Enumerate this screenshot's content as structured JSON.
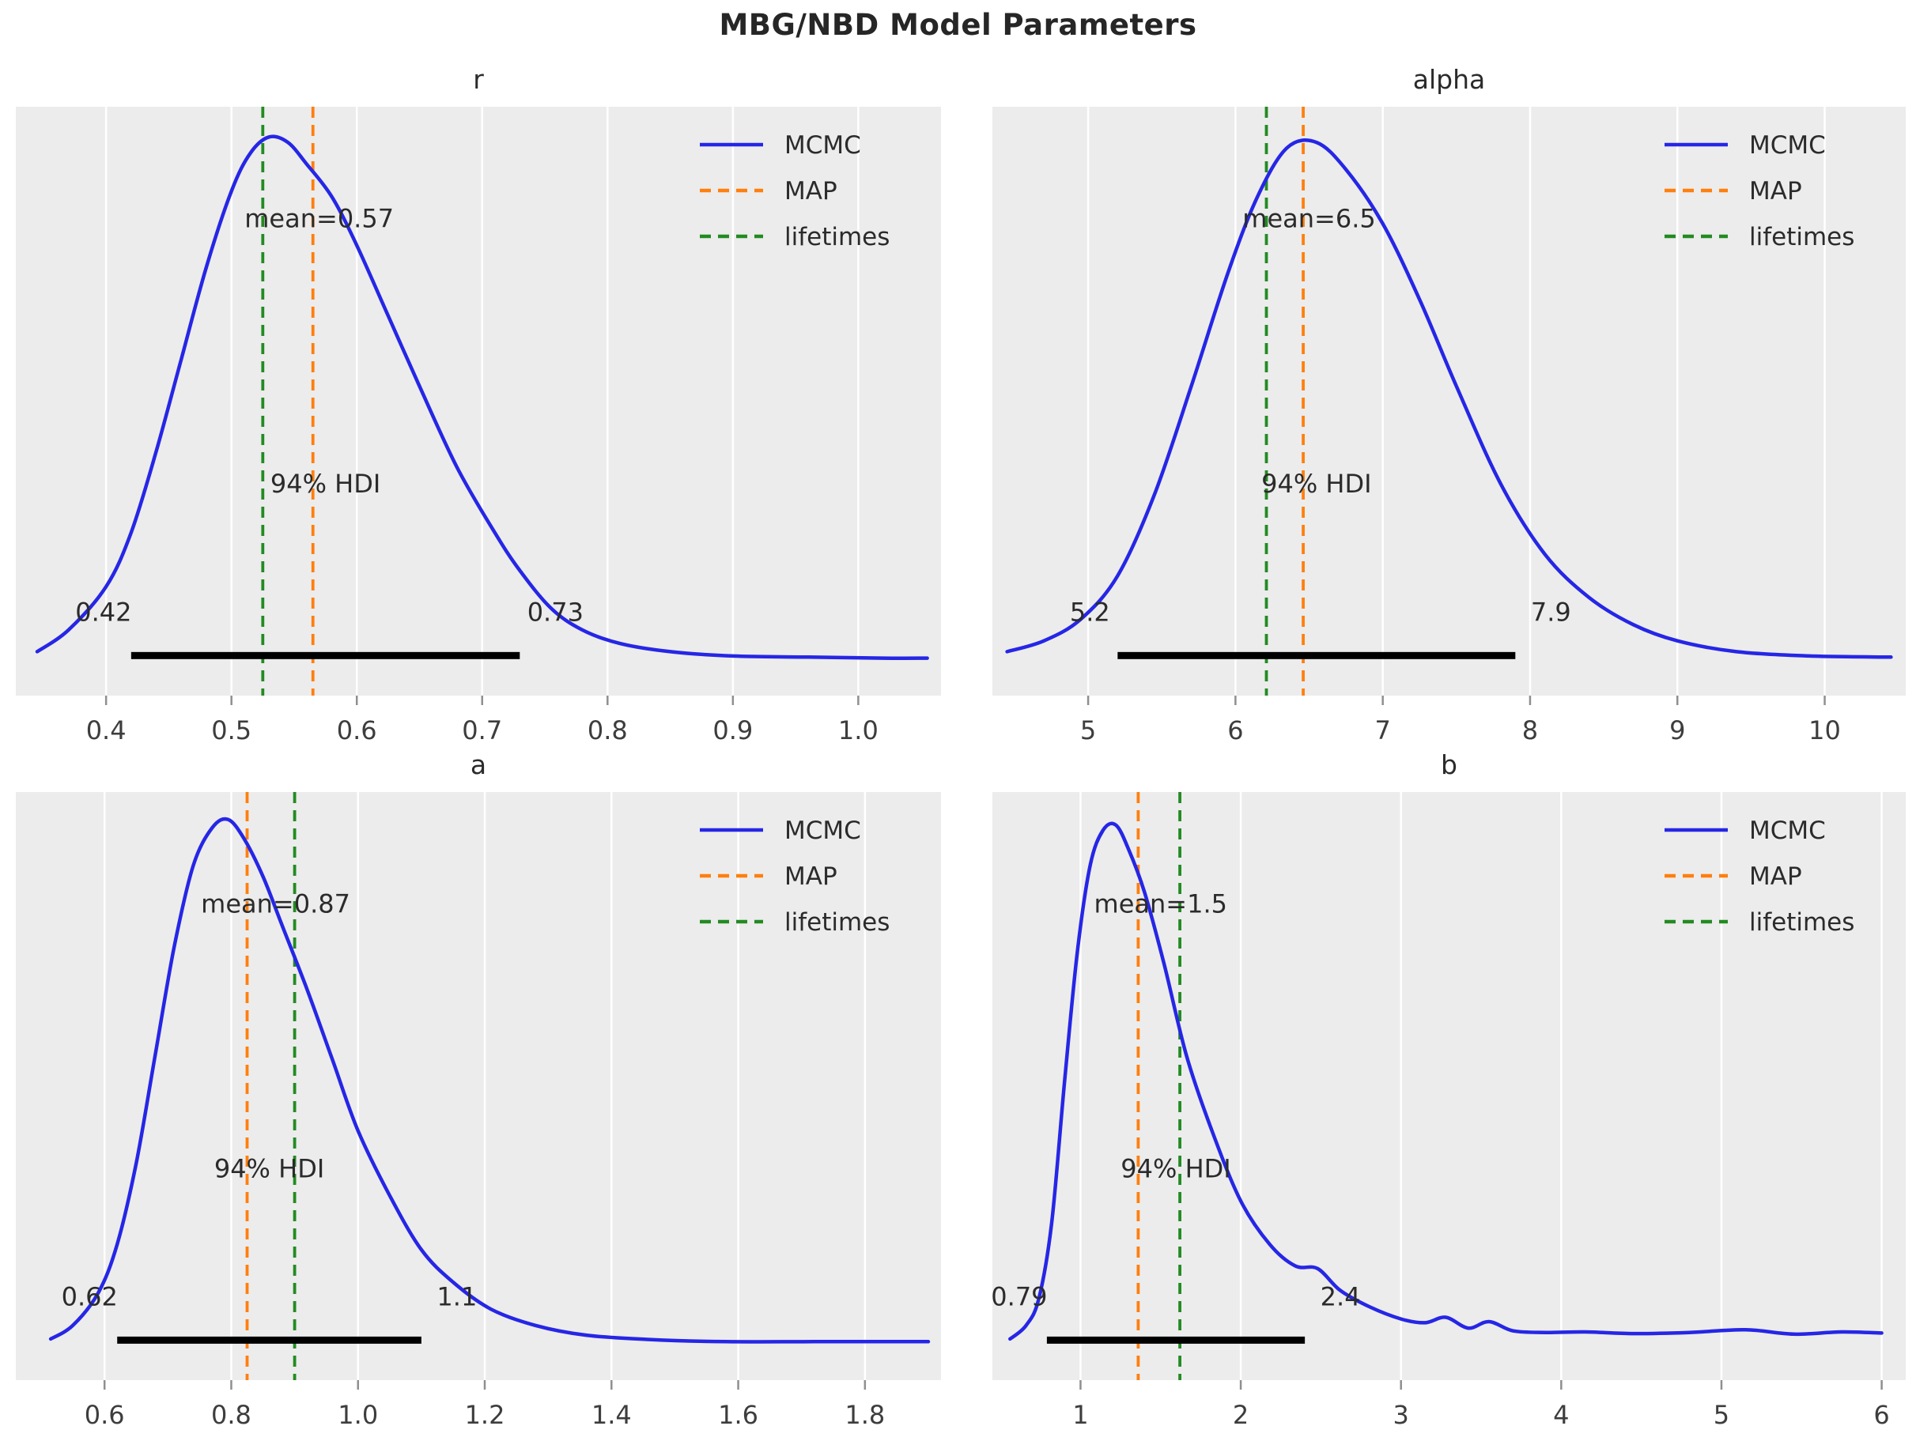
{
  "figure": {
    "title": "MBG/NBD Model Parameters",
    "background": "#ffffff",
    "axes_background": "#ececec",
    "gridline_color": "#ffffff",
    "tick_color": "#8f8f8f",
    "text_color": "#2b2b2b",
    "tick_label_color": "#3d3d3d"
  },
  "legend": {
    "position": "upper right",
    "items": [
      {
        "label": "MCMC",
        "color": "#2626e6",
        "dashed": false
      },
      {
        "label": "MAP",
        "color": "#ff7f0e",
        "dashed": true
      },
      {
        "label": "lifetimes",
        "color": "#228B22",
        "dashed": true
      }
    ]
  },
  "chart_data": [
    {
      "type": "line",
      "title": "r",
      "xlim": [
        0.328,
        1.066
      ],
      "xticks": [
        0.4,
        0.5,
        0.6,
        0.7,
        0.8,
        0.9,
        1.0
      ],
      "xtick_labels": [
        "0.4",
        "0.5",
        "0.6",
        "0.7",
        "0.8",
        "0.9",
        "1.0"
      ],
      "mean": 0.57,
      "mean_label": "mean=0.57",
      "map_value": 0.565,
      "lifetimes_value": 0.525,
      "hdi": [
        0.42,
        0.73
      ],
      "hdi_labels": [
        "0.42",
        "0.73"
      ],
      "hdi_text": "94% HDI",
      "series": [
        {
          "name": "MCMC",
          "x": [
            0.345,
            0.37,
            0.4,
            0.42,
            0.44,
            0.46,
            0.48,
            0.5,
            0.515,
            0.53,
            0.545,
            0.56,
            0.58,
            0.6,
            0.625,
            0.65,
            0.68,
            0.71,
            0.73,
            0.755,
            0.78,
            0.81,
            0.85,
            0.9,
            0.96,
            1.02,
            1.055
          ],
          "density": [
            0.03,
            0.07,
            0.15,
            0.25,
            0.4,
            0.57,
            0.74,
            0.88,
            0.95,
            0.98,
            0.97,
            0.93,
            0.87,
            0.78,
            0.65,
            0.52,
            0.37,
            0.25,
            0.18,
            0.11,
            0.07,
            0.045,
            0.03,
            0.022,
            0.02,
            0.018,
            0.018
          ]
        }
      ]
    },
    {
      "type": "line",
      "title": "alpha",
      "xlim": [
        4.35,
        10.55
      ],
      "xticks": [
        5,
        6,
        7,
        8,
        9,
        10
      ],
      "xtick_labels": [
        "5",
        "6",
        "7",
        "8",
        "9",
        "10"
      ],
      "mean": 6.5,
      "mean_label": "mean=6.5",
      "map_value": 6.46,
      "lifetimes_value": 6.21,
      "hdi": [
        5.2,
        7.9
      ],
      "hdi_labels": [
        "5.2",
        "7.9"
      ],
      "hdi_text": "94% HDI",
      "series": [
        {
          "name": "MCMC",
          "x": [
            4.45,
            4.7,
            4.95,
            5.2,
            5.45,
            5.7,
            5.95,
            6.15,
            6.35,
            6.55,
            6.75,
            7.0,
            7.25,
            7.5,
            7.8,
            8.1,
            8.4,
            8.7,
            9.0,
            9.4,
            9.9,
            10.45
          ],
          "density": [
            0.03,
            0.05,
            0.09,
            0.17,
            0.32,
            0.52,
            0.73,
            0.87,
            0.96,
            0.97,
            0.92,
            0.82,
            0.68,
            0.52,
            0.34,
            0.21,
            0.13,
            0.08,
            0.05,
            0.03,
            0.022,
            0.02
          ]
        }
      ]
    },
    {
      "type": "line",
      "title": "a",
      "xlim": [
        0.46,
        1.92
      ],
      "xticks": [
        0.6,
        0.8,
        1.0,
        1.2,
        1.4,
        1.6,
        1.8
      ],
      "xtick_labels": [
        "0.6",
        "0.8",
        "1.0",
        "1.2",
        "1.4",
        "1.6",
        "1.8"
      ],
      "mean": 0.87,
      "mean_label": "mean=0.87",
      "map_value": 0.825,
      "lifetimes_value": 0.9,
      "hdi": [
        0.62,
        1.1
      ],
      "hdi_labels": [
        "0.62",
        "1.1"
      ],
      "hdi_text": "94% HDI",
      "series": [
        {
          "name": "MCMC",
          "x": [
            0.515,
            0.55,
            0.59,
            0.62,
            0.65,
            0.68,
            0.71,
            0.74,
            0.77,
            0.795,
            0.82,
            0.85,
            0.88,
            0.92,
            0.96,
            1.0,
            1.05,
            1.1,
            1.15,
            1.21,
            1.28,
            1.36,
            1.46,
            1.58,
            1.72,
            1.9
          ],
          "density": [
            0.025,
            0.05,
            0.11,
            0.2,
            0.35,
            0.55,
            0.75,
            0.9,
            0.97,
            0.985,
            0.95,
            0.88,
            0.79,
            0.67,
            0.54,
            0.41,
            0.29,
            0.19,
            0.13,
            0.08,
            0.05,
            0.032,
            0.024,
            0.02,
            0.02,
            0.02
          ]
        }
      ]
    },
    {
      "type": "line",
      "title": "b",
      "xlim": [
        0.45,
        6.15
      ],
      "xticks": [
        1,
        2,
        3,
        4,
        5,
        6
      ],
      "xtick_labels": [
        "1",
        "2",
        "3",
        "4",
        "5",
        "6"
      ],
      "mean": 1.5,
      "mean_label": "mean=1.5",
      "map_value": 1.36,
      "lifetimes_value": 1.62,
      "hdi": [
        0.79,
        2.4
      ],
      "hdi_labels": [
        "0.79",
        "2.4"
      ],
      "hdi_text": "94% HDI",
      "series": [
        {
          "name": "MCMC",
          "x": [
            0.56,
            0.66,
            0.74,
            0.82,
            0.9,
            0.98,
            1.06,
            1.14,
            1.22,
            1.3,
            1.4,
            1.52,
            1.66,
            1.82,
            2.0,
            2.18,
            2.34,
            2.48,
            2.62,
            2.8,
            3.0,
            3.15,
            3.28,
            3.42,
            3.55,
            3.7,
            3.9,
            4.15,
            4.45,
            4.8,
            5.15,
            5.45,
            5.75,
            6.0
          ],
          "density": [
            0.025,
            0.05,
            0.1,
            0.24,
            0.5,
            0.74,
            0.9,
            0.965,
            0.975,
            0.93,
            0.85,
            0.72,
            0.55,
            0.41,
            0.28,
            0.2,
            0.16,
            0.155,
            0.115,
            0.085,
            0.062,
            0.055,
            0.065,
            0.045,
            0.057,
            0.04,
            0.037,
            0.038,
            0.035,
            0.037,
            0.042,
            0.034,
            0.038,
            0.036
          ]
        }
      ]
    }
  ]
}
